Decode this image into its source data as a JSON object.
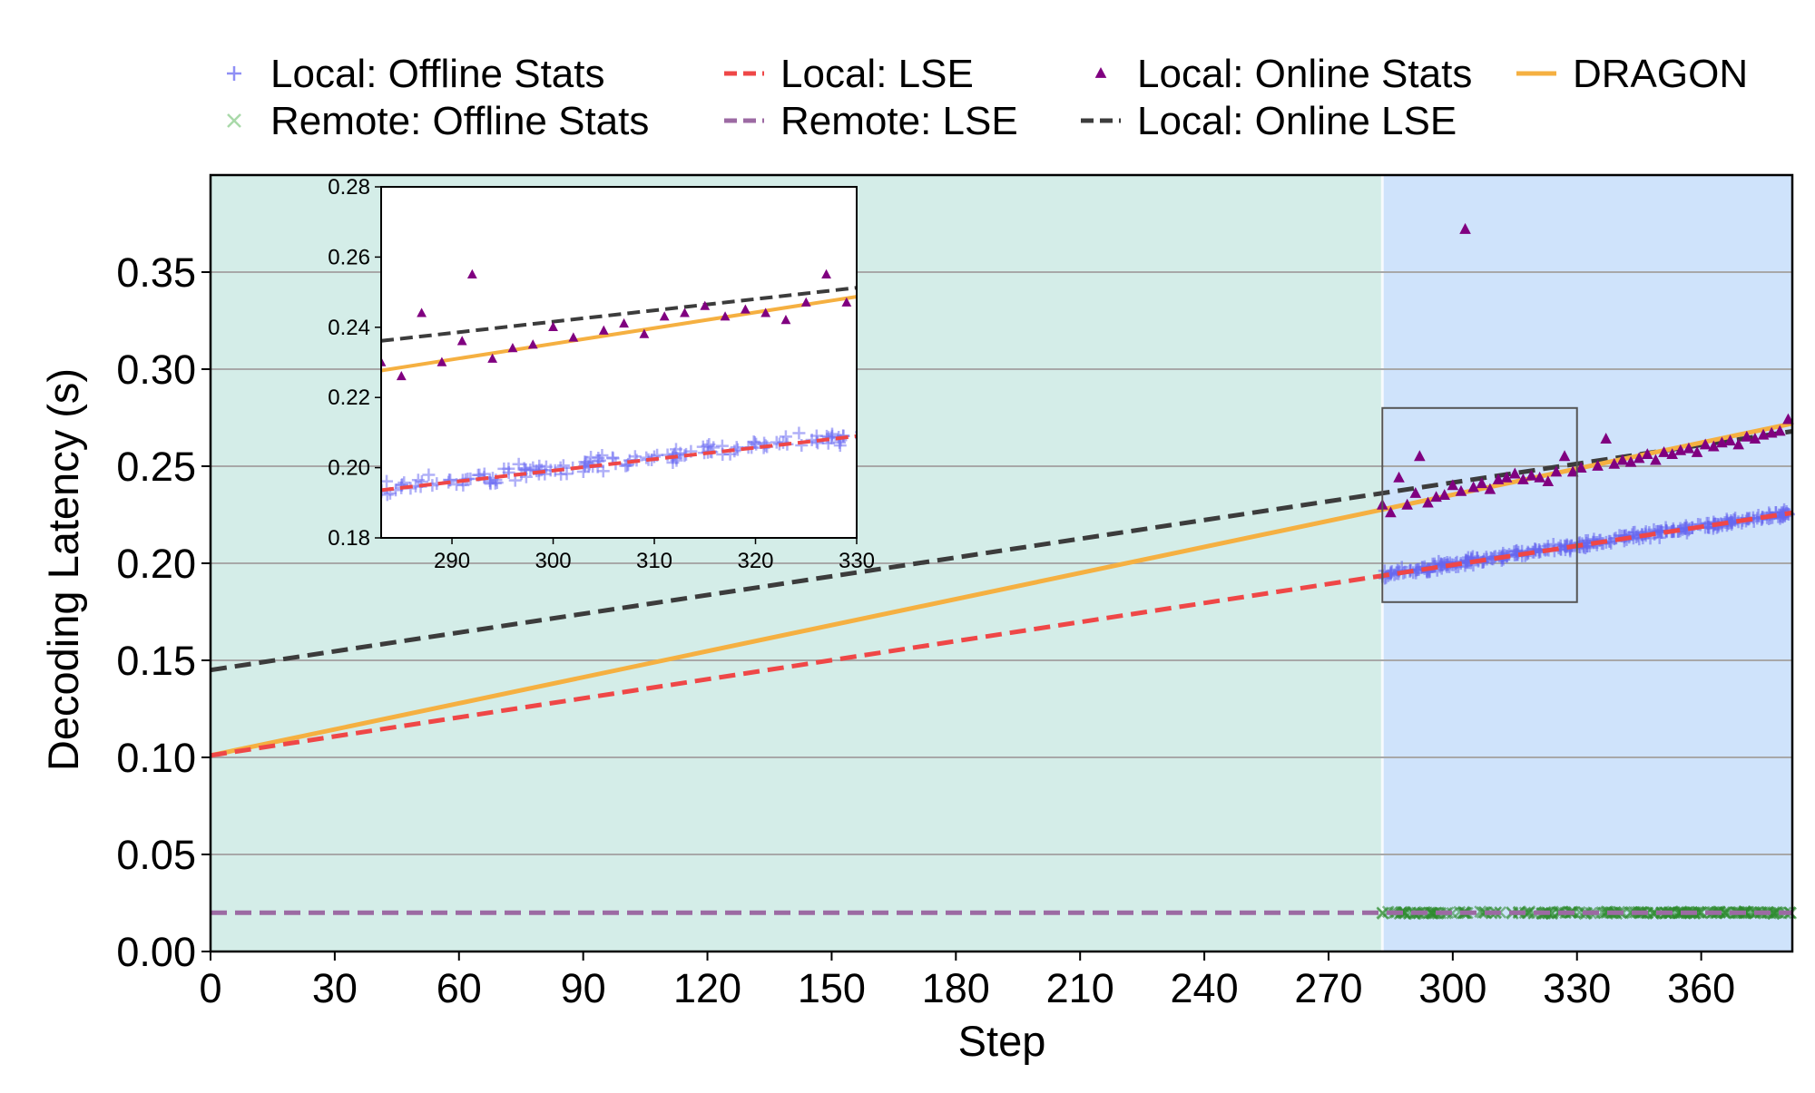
{
  "chart_data": {
    "type": "scatter",
    "xlabel": "Step",
    "ylabel": "Decoding Latency (s)",
    "xlim": [
      0,
      382
    ],
    "ylim": [
      0,
      0.4
    ],
    "xticks": [
      "0",
      "30",
      "60",
      "90",
      "120",
      "150",
      "180",
      "210",
      "240",
      "270",
      "300",
      "330",
      "360"
    ],
    "yticks": [
      "0.00",
      "0.05",
      "0.10",
      "0.15",
      "0.20",
      "0.25",
      "0.30",
      "0.35"
    ],
    "grid": "horizontal",
    "legend_position": "top",
    "regions": [
      {
        "name": "offline",
        "x_range": [
          0,
          283
        ],
        "color": "#d4ede8"
      },
      {
        "name": "online",
        "x_range": [
          283,
          382
        ],
        "color": "#cfe3fb"
      }
    ],
    "legend": [
      {
        "label": "Local: Offline Stats",
        "marker": "plus",
        "color": "#8f8ff5"
      },
      {
        "label": "Remote: Offline Stats",
        "marker": "x",
        "color": "#a9d9a9"
      },
      {
        "label": "Local: LSE",
        "marker": "dashed",
        "color": "#ef4747"
      },
      {
        "label": "Remote: LSE",
        "marker": "dashed",
        "color": "#9c6aa3"
      },
      {
        "label": "Local: Online Stats",
        "marker": "triangle",
        "color": "#800080"
      },
      {
        "label": "Local: Online LSE",
        "marker": "dashed",
        "color": "#3c3c3c"
      },
      {
        "label": "DRAGON",
        "marker": "solid",
        "color": "#f5b041"
      }
    ],
    "series": [
      {
        "name": "Local: LSE",
        "style": "dashed",
        "color": "#ef4747",
        "x": [
          0,
          382
        ],
        "y": [
          0.101,
          0.226
        ]
      },
      {
        "name": "Remote: LSE",
        "style": "dashed",
        "color": "#9c6aa3",
        "x": [
          0,
          382
        ],
        "y": [
          0.02,
          0.02
        ]
      },
      {
        "name": "Local: Online LSE",
        "style": "dashed",
        "color": "#3c3c3c",
        "x": [
          0,
          382
        ],
        "y": [
          0.145,
          0.268
        ]
      },
      {
        "name": "DRAGON",
        "style": "solid",
        "color": "#f5b041",
        "x": [
          0,
          382
        ],
        "y": [
          0.101,
          0.272
        ]
      },
      {
        "name": "Local: Offline Stats",
        "style": "scatter",
        "marker": "plus",
        "color": "#6666ee",
        "x_range": [
          283,
          382
        ],
        "trend": [
          0.194,
          0.226
        ],
        "noise": 0.003
      },
      {
        "name": "Remote: Offline Stats",
        "style": "scatter",
        "marker": "x",
        "color": "#2e8b2e",
        "x_range": [
          283,
          382
        ],
        "trend": [
          0.02,
          0.02
        ],
        "noise": 0.0007
      },
      {
        "name": "Local: Online Stats",
        "style": "scatter",
        "marker": "triangle",
        "color": "#800080",
        "x": [
          283,
          285,
          287,
          289,
          291,
          292,
          294,
          296,
          298,
          300,
          302,
          303,
          305,
          307,
          309,
          311,
          313,
          315,
          317,
          319,
          321,
          323,
          325,
          327,
          329,
          331,
          335,
          337,
          339,
          341,
          343,
          345,
          347,
          349,
          351,
          353,
          355,
          357,
          359,
          361,
          363,
          365,
          367,
          369,
          371,
          373,
          375,
          377,
          379,
          381
        ],
        "y": [
          0.23,
          0.226,
          0.244,
          0.23,
          0.236,
          0.255,
          0.231,
          0.234,
          0.235,
          0.24,
          0.237,
          0.372,
          0.239,
          0.241,
          0.238,
          0.243,
          0.244,
          0.246,
          0.243,
          0.245,
          0.244,
          0.242,
          0.247,
          0.255,
          0.247,
          0.249,
          0.25,
          0.264,
          0.251,
          0.253,
          0.252,
          0.254,
          0.256,
          0.253,
          0.257,
          0.256,
          0.258,
          0.259,
          0.257,
          0.261,
          0.26,
          0.262,
          0.263,
          0.261,
          0.265,
          0.264,
          0.266,
          0.267,
          0.268,
          0.274
        ]
      }
    ],
    "zoom_box": {
      "x_range": [
        283,
        330
      ],
      "y_range": [
        0.18,
        0.28
      ]
    },
    "inset": {
      "xlim": [
        283,
        330
      ],
      "ylim": [
        0.18,
        0.28
      ],
      "xticks": [
        "290",
        "300",
        "310",
        "320",
        "330"
      ],
      "yticks": [
        "0.18",
        "0.20",
        "0.22",
        "0.24",
        "0.26",
        "0.28"
      ]
    }
  }
}
